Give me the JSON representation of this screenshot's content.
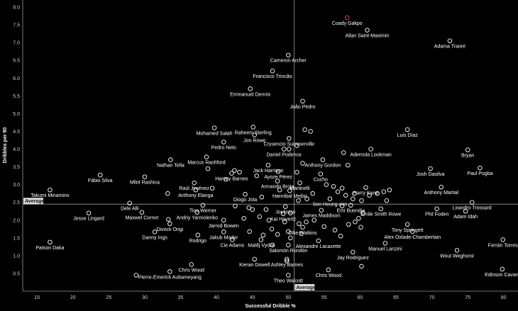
{
  "chart_data": {
    "type": "scatter",
    "xlabel": "Successful Dribble %",
    "ylabel": "Dribbles per 90",
    "xlim": [
      13,
      82
    ],
    "ylim": [
      0.0,
      8.2
    ],
    "x_ticks": [
      15,
      20,
      25,
      30,
      35,
      40,
      45,
      50,
      55,
      60,
      65,
      70,
      75,
      80
    ],
    "y_ticks": [
      0.5,
      1.0,
      1.5,
      2.0,
      2.5,
      3.0,
      3.5,
      4.0,
      4.5,
      5.0,
      5.5,
      6.0,
      6.5,
      7.0,
      7.5,
      8.0
    ],
    "average": {
      "x": 50.8,
      "y": 2.45,
      "x_label": "Average",
      "y_label": "Average"
    },
    "colors": {
      "background": "#000000",
      "point": "#ffffff",
      "highlight": "#e8474c",
      "grid": "#9a9a9a"
    },
    "grid": false,
    "legend": "none",
    "points": [
      {
        "name": "Coady Gakpo",
        "x": 58.2,
        "y": 7.7,
        "highlight": true
      },
      {
        "name": "Allan Saint-Maximin",
        "x": 61.0,
        "y": 7.35
      },
      {
        "name": "Adama Traoré",
        "x": 72.5,
        "y": 7.05
      },
      {
        "name": "Cameron Archer",
        "x": 50.0,
        "y": 6.65
      },
      {
        "name": "Francisco Trincão",
        "x": 47.8,
        "y": 6.2
      },
      {
        "name": "Emmanuel Dennis",
        "x": 44.7,
        "y": 5.7
      },
      {
        "name": "João Pedro",
        "x": 52.0,
        "y": 5.35
      },
      {
        "name": "Raheem Sterling",
        "x": 45.1,
        "y": 4.62
      },
      {
        "name": "Mohamed Salah",
        "x": 39.7,
        "y": 4.6
      },
      {
        "name": "Jon Rowe",
        "x": 45.3,
        "y": 4.4
      },
      {
        "name": "Crysencio Summerville",
        "x": 50.1,
        "y": 4.3
      },
      {
        "name": "Pedro Neto",
        "x": 41.0,
        "y": 4.2
      },
      {
        "name": "Luis Díaz",
        "x": 66.6,
        "y": 4.55
      },
      {
        "name": "Daniel Podence",
        "x": 49.4,
        "y": 4.0
      },
      {
        "name": "Ademola Lookman",
        "x": 61.5,
        "y": 4.0
      },
      {
        "name": "Bryan",
        "x": 75.0,
        "y": 3.98
      },
      {
        "name": "Nathan Tella",
        "x": 33.6,
        "y": 3.7
      },
      {
        "name": "Marcus Rashford",
        "x": 38.6,
        "y": 3.78
      },
      {
        "name": "Jack Harrison",
        "x": 47.2,
        "y": 3.55
      },
      {
        "name": "Anthony Gordon",
        "x": 54.8,
        "y": 3.7
      },
      {
        "name": "Harvey Barnes",
        "x": 42.1,
        "y": 3.32
      },
      {
        "name": "Ayoze Pérez",
        "x": 48.6,
        "y": 3.37
      },
      {
        "name": "Josh Dasilva",
        "x": 69.8,
        "y": 3.45
      },
      {
        "name": "Paul Pogba",
        "x": 76.7,
        "y": 3.47
      },
      {
        "name": "Fábio Silva",
        "x": 23.8,
        "y": 3.27
      },
      {
        "name": "Milot Rashica",
        "x": 30.0,
        "y": 3.22
      },
      {
        "name": "Cucho",
        "x": 54.5,
        "y": 3.3
      },
      {
        "name": "Raúl Jiménez",
        "x": 36.9,
        "y": 3.05
      },
      {
        "name": "Armando Broja",
        "x": 48.5,
        "y": 3.1
      },
      {
        "name": "Martinelli",
        "x": 51.6,
        "y": 3.05
      },
      {
        "name": "Harry Kane",
        "x": 60.8,
        "y": 2.92
      },
      {
        "name": "Anthony Elanga",
        "x": 37.1,
        "y": 2.85
      },
      {
        "name": "Anthony Martial",
        "x": 71.3,
        "y": 2.93
      },
      {
        "name": "Takumi Minamino",
        "x": 16.8,
        "y": 2.85
      },
      {
        "name": "Diogo Jota",
        "x": 44.0,
        "y": 2.73
      },
      {
        "name": "Hannibal Mejbri",
        "x": 50.2,
        "y": 2.83
      },
      {
        "name": "Son Heung-min",
        "x": 55.8,
        "y": 2.6
      },
      {
        "name": "Leandro Trossard",
        "x": 75.6,
        "y": 2.5
      },
      {
        "name": "Emi Buendia",
        "x": 58.7,
        "y": 2.42
      },
      {
        "name": "Dele Alli",
        "x": 27.9,
        "y": 2.48
      },
      {
        "name": "Tino Werner",
        "x": 38.1,
        "y": 2.42
      },
      {
        "name": "Joelinton",
        "x": 49.6,
        "y": 2.38
      },
      {
        "name": "James Maddison",
        "x": 54.6,
        "y": 2.28
      },
      {
        "name": "Emile Smith Rowe",
        "x": 62.9,
        "y": 2.32
      },
      {
        "name": "Phil Foden",
        "x": 70.7,
        "y": 2.32
      },
      {
        "name": "Jesse Lingard",
        "x": 22.2,
        "y": 2.2
      },
      {
        "name": "Maxwel Cornet",
        "x": 29.6,
        "y": 2.22
      },
      {
        "name": "Andriy Yarmolenko",
        "x": 37.3,
        "y": 2.22
      },
      {
        "name": "Kai Havertz",
        "x": 49.3,
        "y": 2.18
      },
      {
        "name": "Adam Idah",
        "x": 74.7,
        "y": 2.25
      },
      {
        "name": "Jarrod Bowen",
        "x": 41.0,
        "y": 2.0
      },
      {
        "name": "Tony Springett",
        "x": 66.6,
        "y": 1.88
      },
      {
        "name": "Divock Origi",
        "x": 33.5,
        "y": 1.9
      },
      {
        "name": "Ollie Watkins",
        "x": 52.0,
        "y": 1.8
      },
      {
        "name": "Danny Ings",
        "x": 31.4,
        "y": 1.67
      },
      {
        "name": "Jakub Moder",
        "x": 41.0,
        "y": 1.67
      },
      {
        "name": "Alex Oxlade-Chamberlain",
        "x": 67.3,
        "y": 1.68
      },
      {
        "name": "Rodrigo",
        "x": 37.4,
        "y": 1.58
      },
      {
        "name": "Ferrán Torres",
        "x": 79.9,
        "y": 1.45
      },
      {
        "name": "Cie Adams",
        "x": 42.2,
        "y": 1.45
      },
      {
        "name": "Matěj Vydra",
        "x": 46.2,
        "y": 1.45
      },
      {
        "name": "Alexandre Lacazette",
        "x": 54.2,
        "y": 1.42
      },
      {
        "name": "Manuel Lanzini",
        "x": 63.5,
        "y": 1.35
      },
      {
        "name": "Patson Daka",
        "x": 16.8,
        "y": 1.38
      },
      {
        "name": "Salomón Rondón",
        "x": 50.0,
        "y": 1.3
      },
      {
        "name": "Jay Rodriguez",
        "x": 59.0,
        "y": 1.1
      },
      {
        "name": "Wout Weghorst",
        "x": 73.5,
        "y": 1.15
      },
      {
        "name": "Ashley Barnes",
        "x": 49.8,
        "y": 0.9
      },
      {
        "name": "Kieran Dowell",
        "x": 45.3,
        "y": 0.9
      },
      {
        "name": "Chris Wood",
        "x": 36.5,
        "y": 0.75
      },
      {
        "name": "Chris Wood",
        "x": 55.6,
        "y": 0.6
      },
      {
        "name": "Edinson Cavani",
        "x": 79.8,
        "y": 0.62
      },
      {
        "name": "Pierre-Emerick Aubameyang",
        "x": 33.5,
        "y": 0.55
      },
      {
        "name": "Theo Walcott",
        "x": 50.0,
        "y": 0.45
      },
      {
        "name": "",
        "x": 28.8,
        "y": 0.45
      },
      {
        "name": "",
        "x": 60.2,
        "y": 0.7
      },
      {
        "name": "",
        "x": 33.2,
        "y": 2.75
      },
      {
        "name": "",
        "x": 33.3,
        "y": 2.02
      },
      {
        "name": "",
        "x": 38.8,
        "y": 3.45
      },
      {
        "name": "",
        "x": 41.3,
        "y": 3.15
      },
      {
        "name": "",
        "x": 42.5,
        "y": 3.4
      },
      {
        "name": "",
        "x": 43.2,
        "y": 3.35
      },
      {
        "name": "",
        "x": 39.4,
        "y": 2.9
      },
      {
        "name": "",
        "x": 42.6,
        "y": 2.4
      },
      {
        "name": "",
        "x": 44.5,
        "y": 2.35
      },
      {
        "name": "",
        "x": 46.0,
        "y": 2.1
      },
      {
        "name": "",
        "x": 46.9,
        "y": 2.3
      },
      {
        "name": "",
        "x": 47.3,
        "y": 2.0
      },
      {
        "name": "",
        "x": 47.7,
        "y": 1.75
      },
      {
        "name": "",
        "x": 46.5,
        "y": 1.58
      },
      {
        "name": "",
        "x": 44.6,
        "y": 1.68
      },
      {
        "name": "",
        "x": 48.5,
        "y": 1.6
      },
      {
        "name": "",
        "x": 49.5,
        "y": 1.95
      },
      {
        "name": "",
        "x": 50.0,
        "y": 1.68
      },
      {
        "name": "",
        "x": 50.3,
        "y": 1.5
      },
      {
        "name": "",
        "x": 51.8,
        "y": 1.62
      },
      {
        "name": "",
        "x": 52.5,
        "y": 1.95
      },
      {
        "name": "",
        "x": 53.6,
        "y": 2.0
      },
      {
        "name": "",
        "x": 55.0,
        "y": 1.82
      },
      {
        "name": "",
        "x": 56.5,
        "y": 1.72
      },
      {
        "name": "",
        "x": 57.3,
        "y": 1.55
      },
      {
        "name": "",
        "x": 58.4,
        "y": 1.88
      },
      {
        "name": "",
        "x": 59.3,
        "y": 1.95
      },
      {
        "name": "",
        "x": 60.1,
        "y": 1.8
      },
      {
        "name": "",
        "x": 59.8,
        "y": 2.05
      },
      {
        "name": "",
        "x": 50.3,
        "y": 2.2
      },
      {
        "name": "",
        "x": 51.4,
        "y": 2.55
      },
      {
        "name": "",
        "x": 52.6,
        "y": 2.6
      },
      {
        "name": "",
        "x": 53.4,
        "y": 2.75
      },
      {
        "name": "",
        "x": 51.2,
        "y": 3.35
      },
      {
        "name": "",
        "x": 52.0,
        "y": 3.6
      },
      {
        "name": "",
        "x": 55.3,
        "y": 3.0
      },
      {
        "name": "",
        "x": 56.3,
        "y": 2.95
      },
      {
        "name": "",
        "x": 56.9,
        "y": 2.8
      },
      {
        "name": "",
        "x": 57.5,
        "y": 2.9
      },
      {
        "name": "",
        "x": 58.0,
        "y": 2.7
      },
      {
        "name": "",
        "x": 59.0,
        "y": 2.6
      },
      {
        "name": "",
        "x": 57.5,
        "y": 2.4
      },
      {
        "name": "",
        "x": 59.2,
        "y": 2.75
      },
      {
        "name": "",
        "x": 60.2,
        "y": 2.55
      },
      {
        "name": "",
        "x": 61.3,
        "y": 2.7
      },
      {
        "name": "",
        "x": 62.4,
        "y": 2.75
      },
      {
        "name": "",
        "x": 63.3,
        "y": 2.8
      },
      {
        "name": "",
        "x": 64.1,
        "y": 2.85
      },
      {
        "name": "",
        "x": 53.1,
        "y": 4.5
      },
      {
        "name": "",
        "x": 52.3,
        "y": 4.55
      },
      {
        "name": "",
        "x": 51.2,
        "y": 4.1
      },
      {
        "name": "",
        "x": 50.1,
        "y": 4.0
      },
      {
        "name": "",
        "x": 57.7,
        "y": 3.9
      },
      {
        "name": "",
        "x": 58.3,
        "y": 3.55
      },
      {
        "name": "",
        "x": 60.4,
        "y": 2.2
      },
      {
        "name": "",
        "x": 63.7,
        "y": 2.55
      },
      {
        "name": "",
        "x": 48.8,
        "y": 2.85
      },
      {
        "name": "",
        "x": 46.3,
        "y": 2.65
      },
      {
        "name": "",
        "x": 45.0,
        "y": 2.3
      },
      {
        "name": "",
        "x": 43.8,
        "y": 2.05
      },
      {
        "name": "",
        "x": 47.8,
        "y": 1.3
      },
      {
        "name": "",
        "x": 49.8,
        "y": 0.85
      },
      {
        "name": "",
        "x": 51.5,
        "y": 1.9
      },
      {
        "name": "",
        "x": 45.6,
        "y": 3.25
      }
    ]
  }
}
